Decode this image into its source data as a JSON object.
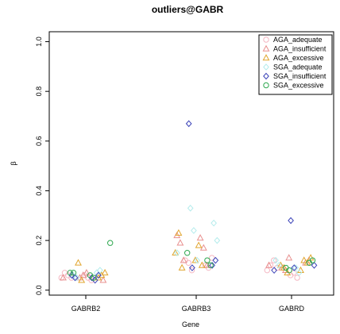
{
  "chart_data": {
    "type": "scatter",
    "title": "outliers@GABR",
    "xlabel": "Gene",
    "ylabel": "β",
    "categories": [
      "GABRB2",
      "GABRB3",
      "GABRD"
    ],
    "ylim": [
      -0.02,
      1.04
    ],
    "yticks": [
      "0.0",
      "0.2",
      "0.4",
      "0.6",
      "0.8",
      "1.0"
    ],
    "ytick_values": [
      0.0,
      0.2,
      0.4,
      0.6,
      0.8,
      1.0
    ],
    "grid": false,
    "legend_position": "top-right",
    "series": [
      {
        "name": "AGA_adequate",
        "color": "#f4b6c2",
        "marker": "circle",
        "points": [
          [
            1,
            0.05
          ],
          [
            1,
            0.06
          ],
          [
            1,
            0.07
          ],
          [
            1,
            0.05
          ],
          [
            1,
            0.06
          ],
          [
            1,
            0.04
          ],
          [
            1,
            0.05
          ],
          [
            2,
            0.1
          ],
          [
            2,
            0.12
          ],
          [
            2,
            0.09
          ],
          [
            2,
            0.11
          ],
          [
            2,
            0.13
          ],
          [
            2,
            0.08
          ],
          [
            3,
            0.08
          ],
          [
            3,
            0.06
          ],
          [
            3,
            0.1
          ],
          [
            3,
            0.07
          ],
          [
            3,
            0.12
          ],
          [
            3,
            0.05
          ],
          [
            3,
            0.09
          ]
        ]
      },
      {
        "name": "AGA_insufficient",
        "color": "#e8908f",
        "marker": "triangle",
        "points": [
          [
            1,
            0.05
          ],
          [
            1,
            0.04
          ],
          [
            1,
            0.06
          ],
          [
            1,
            0.05
          ],
          [
            1,
            0.07
          ],
          [
            2,
            0.22
          ],
          [
            2,
            0.21
          ],
          [
            2,
            0.19
          ],
          [
            2,
            0.17
          ],
          [
            2,
            0.12
          ],
          [
            2,
            0.1
          ],
          [
            3,
            0.09
          ],
          [
            3,
            0.11
          ],
          [
            3,
            0.08
          ],
          [
            3,
            0.12
          ],
          [
            3,
            0.13
          ],
          [
            3,
            0.1
          ]
        ]
      },
      {
        "name": "AGA_excessive",
        "color": "#e1a52e",
        "marker": "triangle",
        "points": [
          [
            1,
            0.05
          ],
          [
            1,
            0.11
          ],
          [
            1,
            0.06
          ],
          [
            1,
            0.04
          ],
          [
            1,
            0.07
          ],
          [
            2,
            0.12
          ],
          [
            2,
            0.15
          ],
          [
            2,
            0.18
          ],
          [
            2,
            0.23
          ],
          [
            2,
            0.1
          ],
          [
            2,
            0.09
          ],
          [
            3,
            0.08
          ],
          [
            3,
            0.1
          ],
          [
            3,
            0.12
          ],
          [
            3,
            0.09
          ],
          [
            3,
            0.11
          ],
          [
            3,
            0.07
          ],
          [
            3,
            0.13
          ]
        ]
      },
      {
        "name": "SGA_adequate",
        "color": "#b4ecec",
        "marker": "diamond",
        "points": [
          [
            1,
            0.06
          ],
          [
            1,
            0.07
          ],
          [
            1,
            0.05
          ],
          [
            1,
            0.08
          ],
          [
            2,
            0.33
          ],
          [
            2,
            0.27
          ],
          [
            2,
            0.24
          ],
          [
            2,
            0.2
          ],
          [
            2,
            0.12
          ],
          [
            2,
            0.15
          ],
          [
            3,
            0.09
          ],
          [
            3,
            0.12
          ],
          [
            3,
            0.07
          ],
          [
            3,
            0.1
          ]
        ]
      },
      {
        "name": "SGA_insufficient",
        "color": "#3b43b8",
        "marker": "diamond",
        "points": [
          [
            1,
            0.05
          ],
          [
            1,
            0.06
          ],
          [
            1,
            0.04
          ],
          [
            1,
            0.05
          ],
          [
            1,
            0.06
          ],
          [
            2,
            0.67
          ],
          [
            2,
            0.1
          ],
          [
            2,
            0.09
          ],
          [
            2,
            0.12
          ],
          [
            3,
            0.28
          ],
          [
            3,
            0.1
          ],
          [
            3,
            0.09
          ],
          [
            3,
            0.08
          ]
        ]
      },
      {
        "name": "SGA_excessive",
        "color": "#2ea84f",
        "marker": "circle",
        "points": [
          [
            1,
            0.19
          ],
          [
            1,
            0.06
          ],
          [
            1,
            0.07
          ],
          [
            1,
            0.05
          ],
          [
            1,
            0.07
          ],
          [
            2,
            0.12
          ],
          [
            2,
            0.15
          ],
          [
            2,
            0.1
          ],
          [
            3,
            0.09
          ],
          [
            3,
            0.11
          ],
          [
            3,
            0.08
          ],
          [
            3,
            0.12
          ]
        ]
      }
    ]
  }
}
